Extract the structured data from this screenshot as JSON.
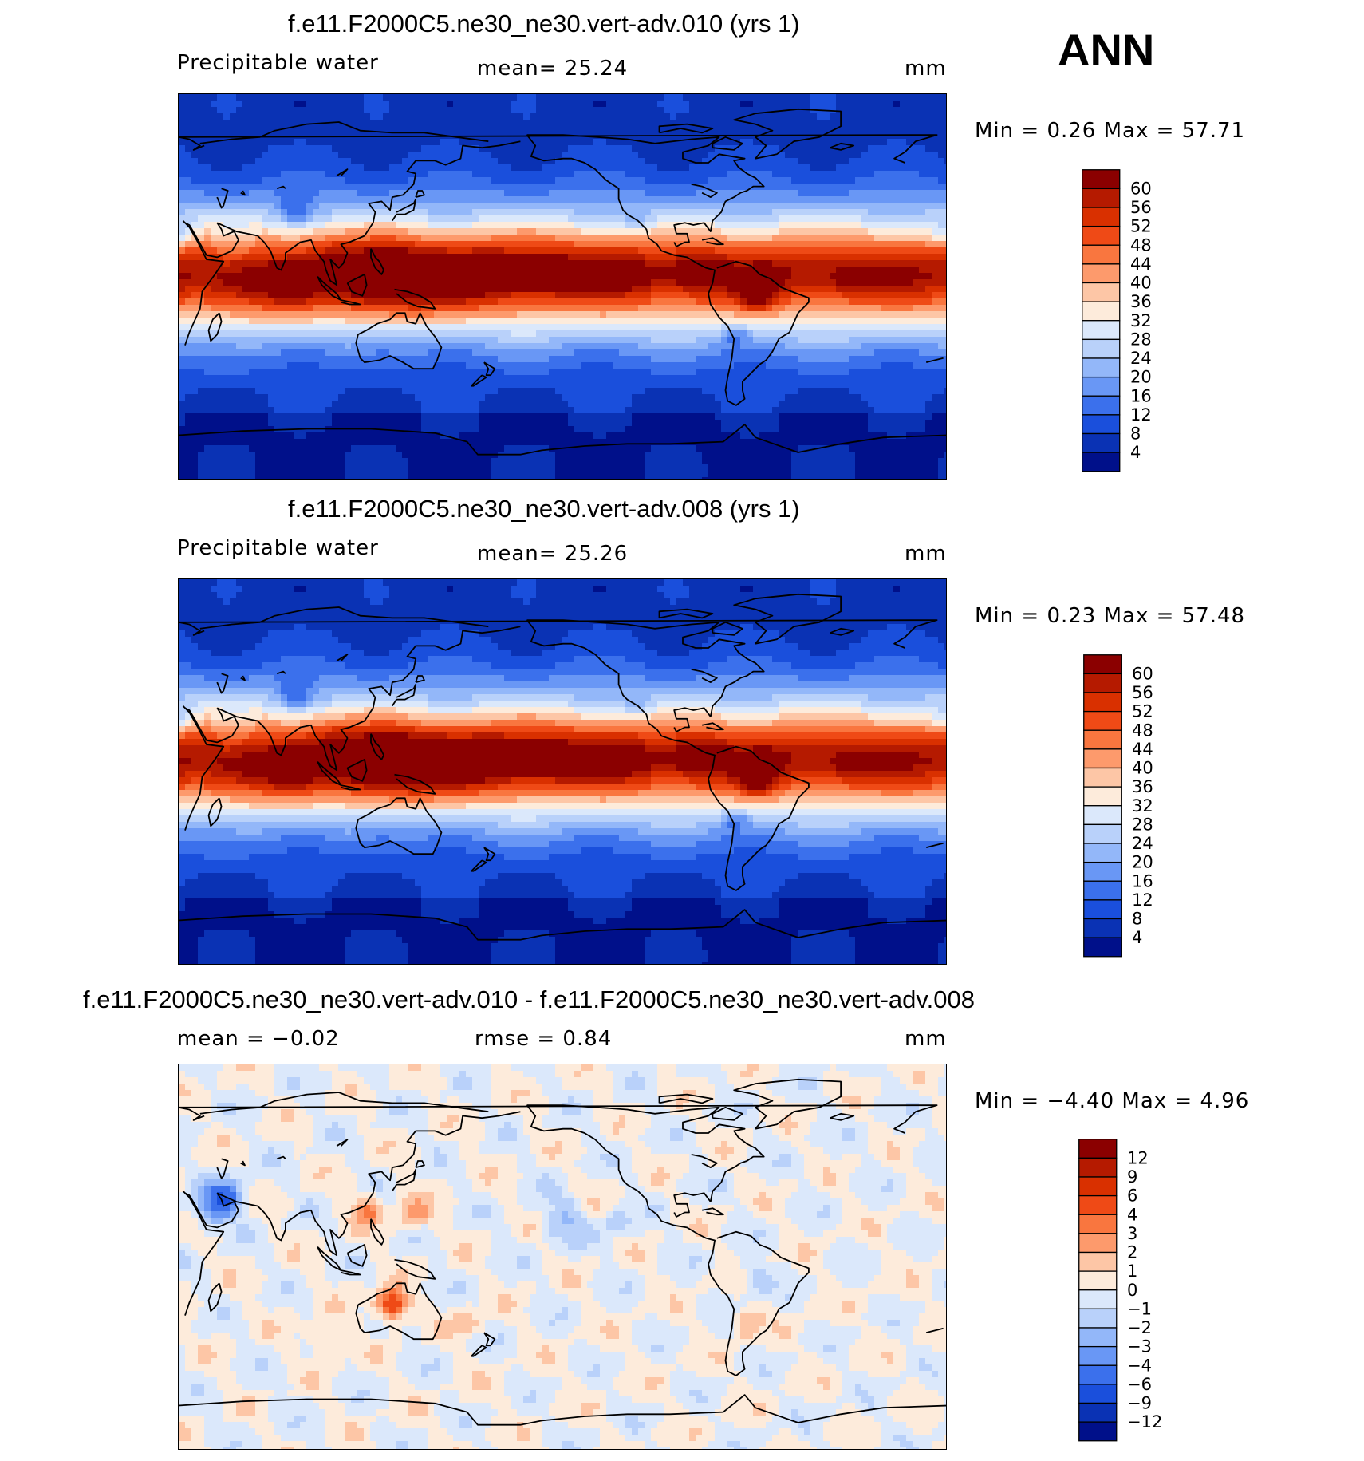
{
  "season": "ANN",
  "panels": [
    {
      "title": "f.e11.F2000C5.ne30_ne30.vert-adv.010 (yrs 1)",
      "left_label": "Precipitable water",
      "center_label": "mean=   25.24",
      "units": "mm",
      "minmax": "Min =     0.26  Max =    57.71",
      "field": "abs",
      "colorbar": {
        "labels": [
          "60",
          "56",
          "52",
          "48",
          "44",
          "40",
          "36",
          "32",
          "28",
          "24",
          "20",
          "16",
          "12",
          "8",
          "4"
        ],
        "colors": [
          "#8b0000",
          "#b51a00",
          "#d93000",
          "#ef4a16",
          "#f9763f",
          "#fd9a6c",
          "#fdc6a6",
          "#fdebdb",
          "#dbe8fb",
          "#b9d1fa",
          "#93b7f9",
          "#6997f5",
          "#3b70ec",
          "#1a4fdc",
          "#0a32b4",
          "#00108a"
        ]
      }
    },
    {
      "title": "f.e11.F2000C5.ne30_ne30.vert-adv.008 (yrs 1)",
      "left_label": "Precipitable water",
      "center_label": "mean=   25.26",
      "units": "mm",
      "minmax": "Min =     0.23  Max =    57.48",
      "field": "abs",
      "colorbar": {
        "labels": [
          "60",
          "56",
          "52",
          "48",
          "44",
          "40",
          "36",
          "32",
          "28",
          "24",
          "20",
          "16",
          "12",
          "8",
          "4"
        ],
        "colors": [
          "#8b0000",
          "#b51a00",
          "#d93000",
          "#ef4a16",
          "#f9763f",
          "#fd9a6c",
          "#fdc6a6",
          "#fdebdb",
          "#dbe8fb",
          "#b9d1fa",
          "#93b7f9",
          "#6997f5",
          "#3b70ec",
          "#1a4fdc",
          "#0a32b4",
          "#00108a"
        ]
      }
    },
    {
      "title": "f.e11.F2000C5.ne30_ne30.vert-adv.010 - f.e11.F2000C5.ne30_ne30.vert-adv.008",
      "left_label": "mean =   −0.02",
      "center_label": "rmse =    0.84",
      "units": "mm",
      "minmax": "Min =   −4.40  Max =     4.96",
      "field": "diff",
      "colorbar": {
        "labels": [
          "12",
          "9",
          "6",
          "4",
          "3",
          "2",
          "1",
          "0",
          "−1",
          "−2",
          "−3",
          "−4",
          "−6",
          "−9",
          "−12"
        ],
        "colors": [
          "#8b0000",
          "#b51a00",
          "#d93000",
          "#ef4a16",
          "#f9763f",
          "#fd9a6c",
          "#fdc6a6",
          "#fdebdb",
          "#dbe8fb",
          "#b9d1fa",
          "#93b7f9",
          "#6997f5",
          "#3b70ec",
          "#1a4fdc",
          "#0a32b4",
          "#00108a"
        ]
      }
    }
  ]
}
